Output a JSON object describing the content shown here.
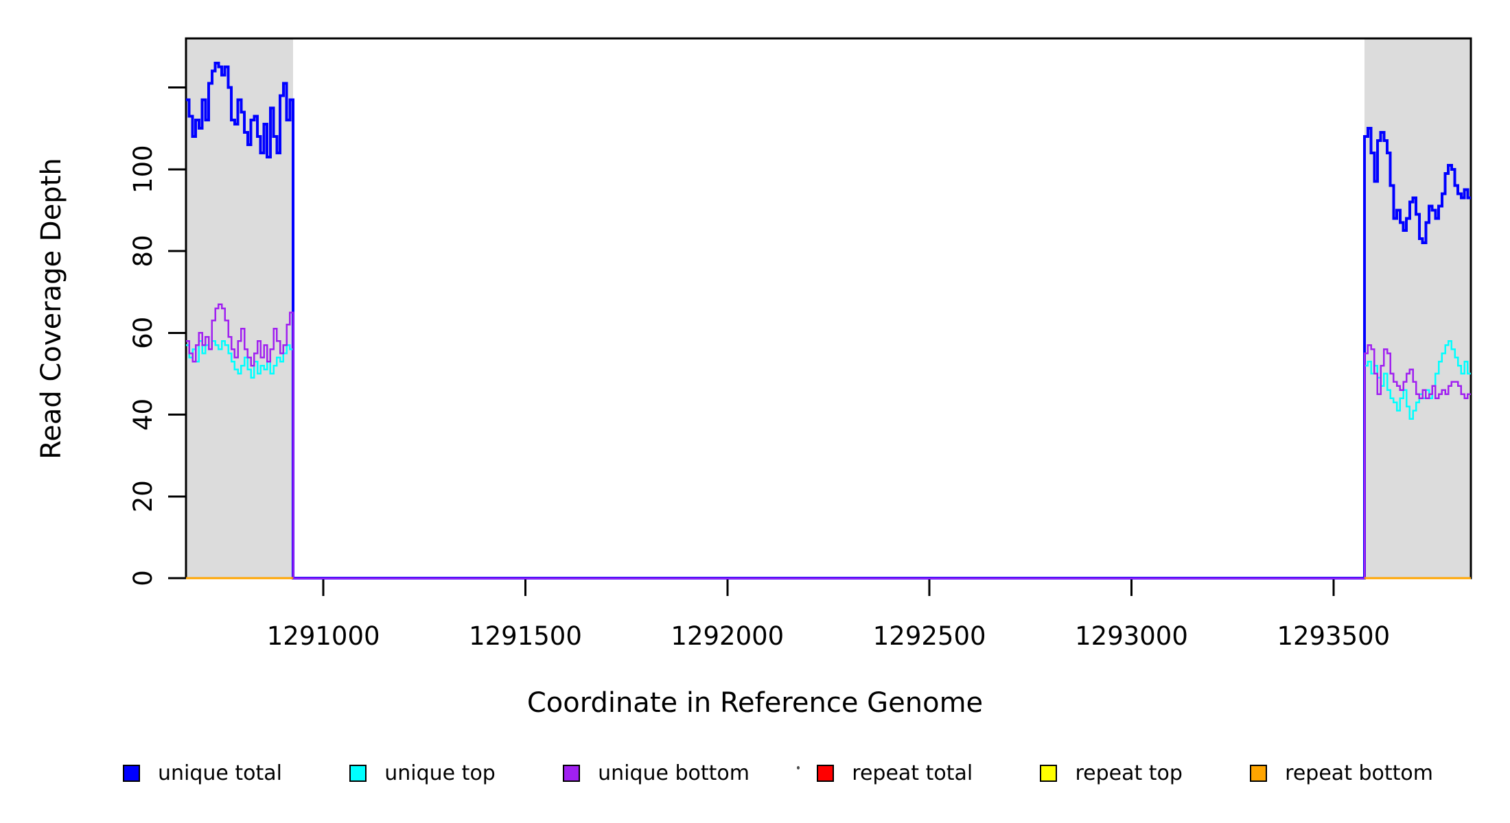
{
  "figure": {
    "xlabel": "Coordinate in Reference Genome",
    "ylabel": "Read Coverage Depth",
    "background_color": "#ffffff"
  },
  "chart_data": {
    "type": "line",
    "step": true,
    "title": "",
    "xlabel": "Coordinate in Reference Genome",
    "ylabel": "Read Coverage Depth",
    "xlim": [
      1290660,
      1293840
    ],
    "ylim": [
      0,
      132
    ],
    "grid": false,
    "x_ticks": [
      1291000,
      1291500,
      1292000,
      1292500,
      1293000,
      1293500
    ],
    "x_tick_labels": [
      "1291000",
      "1291500",
      "1292000",
      "1292500",
      "1293000",
      "1293500"
    ],
    "y_ticks": [
      0,
      20,
      40,
      60,
      80,
      100,
      120
    ],
    "y_tick_labels": [
      "0",
      "20",
      "40",
      "60",
      "80",
      "100",
      ""
    ],
    "shaded_regions": [
      {
        "name": "left-repeat-flank",
        "x0": 1290660,
        "x1": 1290925,
        "color": "#dcdcdc"
      },
      {
        "name": "right-repeat-flank",
        "x0": 1293577,
        "x1": 1293840,
        "color": "#dcdcdc"
      }
    ],
    "series": [
      {
        "name": "unique total",
        "color": "#0000ff",
        "line_width": 4,
        "span": "full",
        "left_region_values": [
          117,
          113,
          108,
          112,
          110,
          117,
          112,
          121,
          124,
          126,
          125,
          123,
          125,
          120,
          112,
          111,
          117,
          114,
          109,
          106,
          112,
          113,
          108,
          104,
          111,
          103,
          115,
          108,
          104,
          118,
          121,
          112,
          117
        ],
        "mid_value": 0,
        "right_region_values": [
          108,
          110,
          104,
          97,
          107,
          109,
          107,
          104,
          96,
          88,
          90,
          87,
          85,
          88,
          92,
          93,
          89,
          83,
          82,
          87,
          91,
          90,
          88,
          91,
          94,
          99,
          101,
          100,
          96,
          94,
          93,
          95,
          93
        ]
      },
      {
        "name": "unique top",
        "color": "#00ffff",
        "line_width": 2.5,
        "span": "full",
        "left_region_values": [
          57,
          54,
          56,
          53,
          58,
          55,
          57,
          56,
          58,
          57,
          56,
          58,
          57,
          55,
          53,
          51,
          50,
          52,
          54,
          51,
          49,
          53,
          50,
          52,
          51,
          53,
          50,
          52,
          54,
          53,
          55,
          57,
          56
        ],
        "mid_value": 0,
        "right_region_values": [
          52,
          53,
          50,
          52,
          49,
          47,
          50,
          46,
          44,
          43,
          41,
          44,
          46,
          42,
          39,
          41,
          43,
          45,
          44,
          46,
          44,
          47,
          50,
          53,
          55,
          57,
          58,
          56,
          54,
          52,
          50,
          53,
          50
        ]
      },
      {
        "name": "unique bottom",
        "color": "#a020f0",
        "line_width": 2.5,
        "span": "full",
        "left_region_values": [
          58,
          55,
          53,
          57,
          60,
          57,
          59,
          56,
          63,
          66,
          67,
          66,
          63,
          59,
          56,
          54,
          58,
          61,
          56,
          54,
          52,
          55,
          58,
          54,
          57,
          53,
          56,
          61,
          58,
          55,
          57,
          62,
          65
        ],
        "mid_value": 0,
        "right_region_values": [
          55,
          57,
          56,
          50,
          45,
          52,
          56,
          55,
          50,
          48,
          47,
          46,
          48,
          50,
          51,
          48,
          45,
          44,
          46,
          44,
          45,
          47,
          44,
          45,
          46,
          45,
          47,
          48,
          48,
          47,
          45,
          44,
          45
        ]
      },
      {
        "name": "repeat total",
        "color": "#ff0000",
        "line_width": 2.5,
        "span": "regions",
        "region_value": 0
      },
      {
        "name": "repeat top",
        "color": "#ffff00",
        "line_width": 2.5,
        "span": "regions",
        "region_value": 0
      },
      {
        "name": "repeat bottom",
        "color": "#ffa500",
        "line_width": 3,
        "span": "regions",
        "region_value": 0
      }
    ],
    "legend": {
      "position": "bottom",
      "entries": [
        {
          "label": "unique total",
          "color": "#0000ff"
        },
        {
          "label": "unique top",
          "color": "#00ffff"
        },
        {
          "label": "unique bottom",
          "color": "#a020f0"
        },
        {
          "label": "repeat total",
          "color": "#ff0000"
        },
        {
          "label": "repeat top",
          "color": "#ffff00"
        },
        {
          "label": "repeat bottom",
          "color": "#ffa500"
        }
      ]
    }
  }
}
